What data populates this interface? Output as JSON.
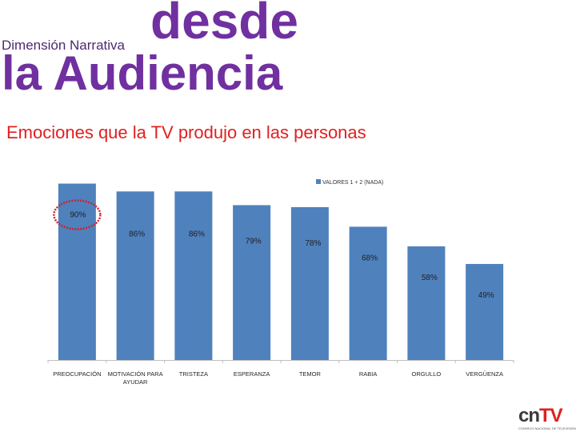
{
  "header": {
    "subtitle": "Dimensión Narrativa",
    "title_line1": "desde",
    "title_line2": "la Audiencia"
  },
  "section_heading": "Emociones que la TV produjo en las personas",
  "logo": {
    "part1": "cn",
    "part2": "TV",
    "tagline": "CONSEJO NACIONAL DE TELEVISIÓN",
    "color1": "#3a3a3a",
    "color2": "#e02020"
  },
  "chart_data": {
    "type": "bar",
    "title": "",
    "categories": [
      "PREOCUPACIÓN",
      "MOTIVACIÓN PARA AYUDAR",
      "TRISTEZA",
      "ESPERANZA",
      "TEMOR",
      "RABIA",
      "ORGULLO",
      "VERGÜENZA"
    ],
    "category_lines": [
      [
        "PREOCUPACIÓN"
      ],
      [
        "MOTIVACIÓN PARA",
        "AYUDAR"
      ],
      [
        "TRISTEZA"
      ],
      [
        "ESPERANZA"
      ],
      [
        "TEMOR"
      ],
      [
        "RABIA"
      ],
      [
        "ORGULLO"
      ],
      [
        "VERGÜENZA"
      ]
    ],
    "series": [
      {
        "name": "VALORES 1 + 2 (NADA)",
        "values": [
          90,
          86,
          86,
          79,
          78,
          68,
          58,
          49
        ],
        "color": "#4f81bd"
      }
    ],
    "data_labels": [
      "90%",
      "86%",
      "86%",
      "79%",
      "78%",
      "68%",
      "58%",
      "49%"
    ],
    "highlighted_index": 0,
    "highlight_color": "#d0202a",
    "xlabel": "",
    "ylabel": "",
    "ylim": [
      0,
      100
    ],
    "grid": false,
    "legend_position": "top-right"
  }
}
